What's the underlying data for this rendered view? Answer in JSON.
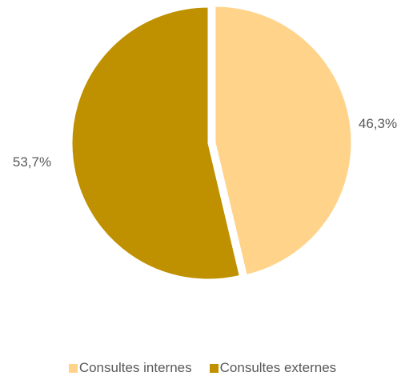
{
  "chart_data": {
    "type": "pie",
    "categories": [
      "Consultes internes",
      "Consultes externes"
    ],
    "values": [
      46.3,
      53.7
    ],
    "data_labels": [
      "46,3%",
      "53,7%"
    ],
    "colors": [
      "#FFD38A",
      "#BF9000"
    ],
    "exploded": [
      "Consultes internes"
    ],
    "legend_position": "bottom"
  }
}
